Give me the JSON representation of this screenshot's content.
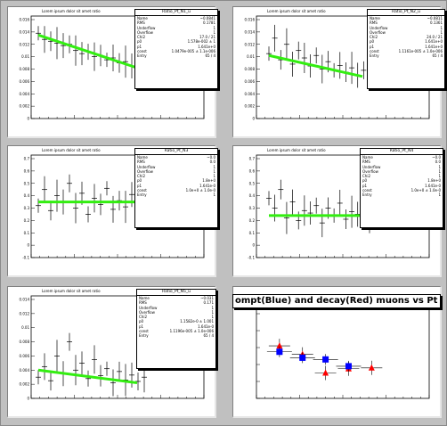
{
  "canvas": {
    "background": "#c0c0c0"
  },
  "pads": [
    {
      "name": "pad-1",
      "hist_title": "Lorem ipsum dolor sit amet ratio",
      "stats": {
        "header": "Ratio_Pt_N1_u",
        "rows": [
          {
            "k": "Name",
            "v": "~0.0841"
          },
          {
            "k": "RMS",
            "v": "0.1781"
          },
          {
            "k": "Underflow",
            "v": "1"
          },
          {
            "k": "Overflow",
            "v": "1"
          },
          {
            "k": "Chi2",
            "v": "17.0 / 21"
          },
          {
            "k": "p0",
            "v": "1.578e-002 ± 1"
          },
          {
            "k": "p1",
            "v": "1.641e+0"
          },
          {
            "k": "const",
            "v": "1.0479e-005 ± 1.1e-006"
          },
          {
            "k": "Entry",
            "v": "65 / 4"
          }
        ]
      },
      "y_ticks": [
        "0.016",
        "0.014",
        "0.012",
        "0.01",
        "0.008",
        "0.006",
        "0.004",
        "0.002",
        "0"
      ]
    },
    {
      "name": "pad-2",
      "hist_title": "Lorem ipsum dolor sit amet ratio",
      "stats": {
        "header": "Ratio_Pt_N2_u",
        "rows": [
          {
            "k": "Name",
            "v": "~0.0811"
          },
          {
            "k": "RMS",
            "v": "0.1361"
          },
          {
            "k": "Underflow",
            "v": "1"
          },
          {
            "k": "Overflow",
            "v": "1"
          },
          {
            "k": "Chi2",
            "v": "24.0 / 21"
          },
          {
            "k": "p0",
            "v": "1.641e+0"
          },
          {
            "k": "p1",
            "v": "1.641e+0"
          },
          {
            "k": "const",
            "v": "1.1161e-005 ± 1.0e-006"
          },
          {
            "k": "Entry",
            "v": "65 / 4"
          }
        ]
      },
      "y_ticks": [
        "0.016",
        "0.014",
        "0.012",
        "0.01",
        "0.008",
        "0.006",
        "0.004",
        "0.002",
        "0"
      ]
    },
    {
      "name": "pad-3",
      "hist_title": "Lorem ipsum dolor sit amet ratio",
      "stats": {
        "header": "Ratio_Pt_N3",
        "rows": [
          {
            "k": "Name",
            "v": "~0.0"
          },
          {
            "k": "RMS",
            "v": "0.0"
          },
          {
            "k": "Underflow",
            "v": "1"
          },
          {
            "k": "Overflow",
            "v": "1"
          },
          {
            "k": "Chi2",
            "v": "1"
          },
          {
            "k": "p0",
            "v": "1.8e+0"
          },
          {
            "k": "p1",
            "v": "1.641e-0"
          },
          {
            "k": "const",
            "v": "1.0e+0 ± 1.0e-0"
          },
          {
            "k": "Entry",
            "v": "1"
          }
        ]
      },
      "y_ticks": [
        "0.7",
        "0.6",
        "0.5",
        "0.4",
        "0.3",
        "0.2",
        "0.1",
        "0",
        "-0.1"
      ]
    },
    {
      "name": "pad-4",
      "hist_title": "Lorem ipsum dolor sit amet ratio",
      "stats": {
        "header": "Ratio_Pt_N4",
        "rows": [
          {
            "k": "Name",
            "v": "~0.0"
          },
          {
            "k": "RMS",
            "v": "0.0"
          },
          {
            "k": "Underflow",
            "v": "1"
          },
          {
            "k": "Overflow",
            "v": "1"
          },
          {
            "k": "Chi2",
            "v": "1"
          },
          {
            "k": "p0",
            "v": "1.8e+0"
          },
          {
            "k": "p1",
            "v": "1.641e-0"
          },
          {
            "k": "const",
            "v": "1.0e+0 ± 1.0e-0"
          },
          {
            "k": "Entry",
            "v": "1"
          }
        ]
      },
      "y_ticks": [
        "0.7",
        "0.6",
        "0.5",
        "0.4",
        "0.3",
        "0.2",
        "0.1",
        "0",
        "-0.1"
      ]
    },
    {
      "name": "pad-5",
      "hist_title": "Lorem ipsum dolor sit amet ratio",
      "stats": {
        "header": "Ratio_Pt_N5_u",
        "rows": [
          {
            "k": "Name",
            "v": "~0.031"
          },
          {
            "k": "RMS",
            "v": "0.171"
          },
          {
            "k": "Underflow",
            "v": "1"
          },
          {
            "k": "Overflow",
            "v": "1"
          },
          {
            "k": "Chi2",
            "v": "1"
          },
          {
            "k": "p0",
            "v": "1.1582e-0 ± 1.001"
          },
          {
            "k": "p1",
            "v": "1.641e-0"
          },
          {
            "k": "const",
            "v": "1.1196e-005 ± 1.0e-006"
          },
          {
            "k": "Entry",
            "v": "65 / 4"
          }
        ]
      },
      "y_ticks": [
        "0.014",
        "0.012",
        "0.01",
        "0.008",
        "0.006",
        "0.004",
        "0.002",
        "0"
      ]
    },
    {
      "name": "pad-6",
      "big_title": "ompt(Blue) and decay(Red) muons vs Pt  -  No"
    }
  ],
  "chart_data": [
    {
      "type": "scatter",
      "title": "",
      "series": [
        {
          "values": [
            0.0138,
            0.0128,
            0.0125,
            0.0122,
            0.0118,
            0.012,
            0.011,
            0.0105,
            0.0108,
            0.01,
            0.0102,
            0.0095,
            0.0098,
            0.009,
            0.0092,
            0.0085,
            0.0088,
            0.0082
          ]
        },
        {
          "name": "fit",
          "values": [
            0.0135,
            0.0082
          ]
        }
      ]
    },
    {
      "type": "scatter",
      "series": [
        {
          "values": [
            0.0105,
            0.013,
            0.0095,
            0.012,
            0.0088,
            0.011,
            0.0098,
            0.0085,
            0.0102,
            0.008,
            0.0092,
            0.0078,
            0.0086,
            0.0075,
            0.0082,
            0.007,
            0.0078,
            0.0072
          ]
        },
        {
          "name": "fit",
          "values": [
            0.0102,
            0.0068
          ]
        }
      ]
    },
    {
      "type": "scatter",
      "series": [
        {
          "values": [
            0.32,
            0.45,
            0.28,
            0.4,
            0.35,
            0.5,
            0.3,
            0.42,
            0.25,
            0.38,
            0.33,
            0.46,
            0.29,
            0.36,
            0.31,
            0.41,
            0.27,
            0.34
          ]
        },
        {
          "name": "fit",
          "values": [
            0.35,
            0.35
          ]
        }
      ]
    },
    {
      "type": "scatter",
      "series": [
        {
          "values": [
            0.38,
            0.3,
            0.45,
            0.22,
            0.35,
            0.2,
            0.28,
            0.26,
            0.32,
            0.18,
            0.3,
            0.24,
            0.34,
            0.21,
            0.27,
            0.25,
            0.31,
            0.22
          ]
        },
        {
          "name": "fit",
          "values": [
            0.24,
            0.24
          ]
        }
      ]
    },
    {
      "type": "scatter",
      "series": [
        {
          "values": [
            0.003,
            0.0045,
            0.0025,
            0.006,
            0.0035,
            0.008,
            0.004,
            0.005,
            0.0028,
            0.0055,
            0.0032,
            0.0042,
            0.0022,
            0.0038,
            0.0026,
            0.0033,
            0.0024,
            0.003
          ]
        },
        {
          "name": "fit",
          "values": [
            0.004,
            0.0022
          ]
        }
      ]
    },
    {
      "type": "scatter",
      "series": [
        {
          "name": "Blue",
          "color": "#0000ff",
          "x": [
            1.0,
            2.0,
            3.0,
            4.0
          ],
          "values": [
            0.55,
            0.48,
            0.46,
            0.38
          ]
        },
        {
          "name": "Red",
          "color": "#ff0000",
          "x": [
            1.0,
            2.0,
            3.0,
            4.0,
            5.0
          ],
          "values": [
            0.62,
            0.52,
            0.3,
            0.35,
            0.36
          ]
        }
      ]
    }
  ]
}
